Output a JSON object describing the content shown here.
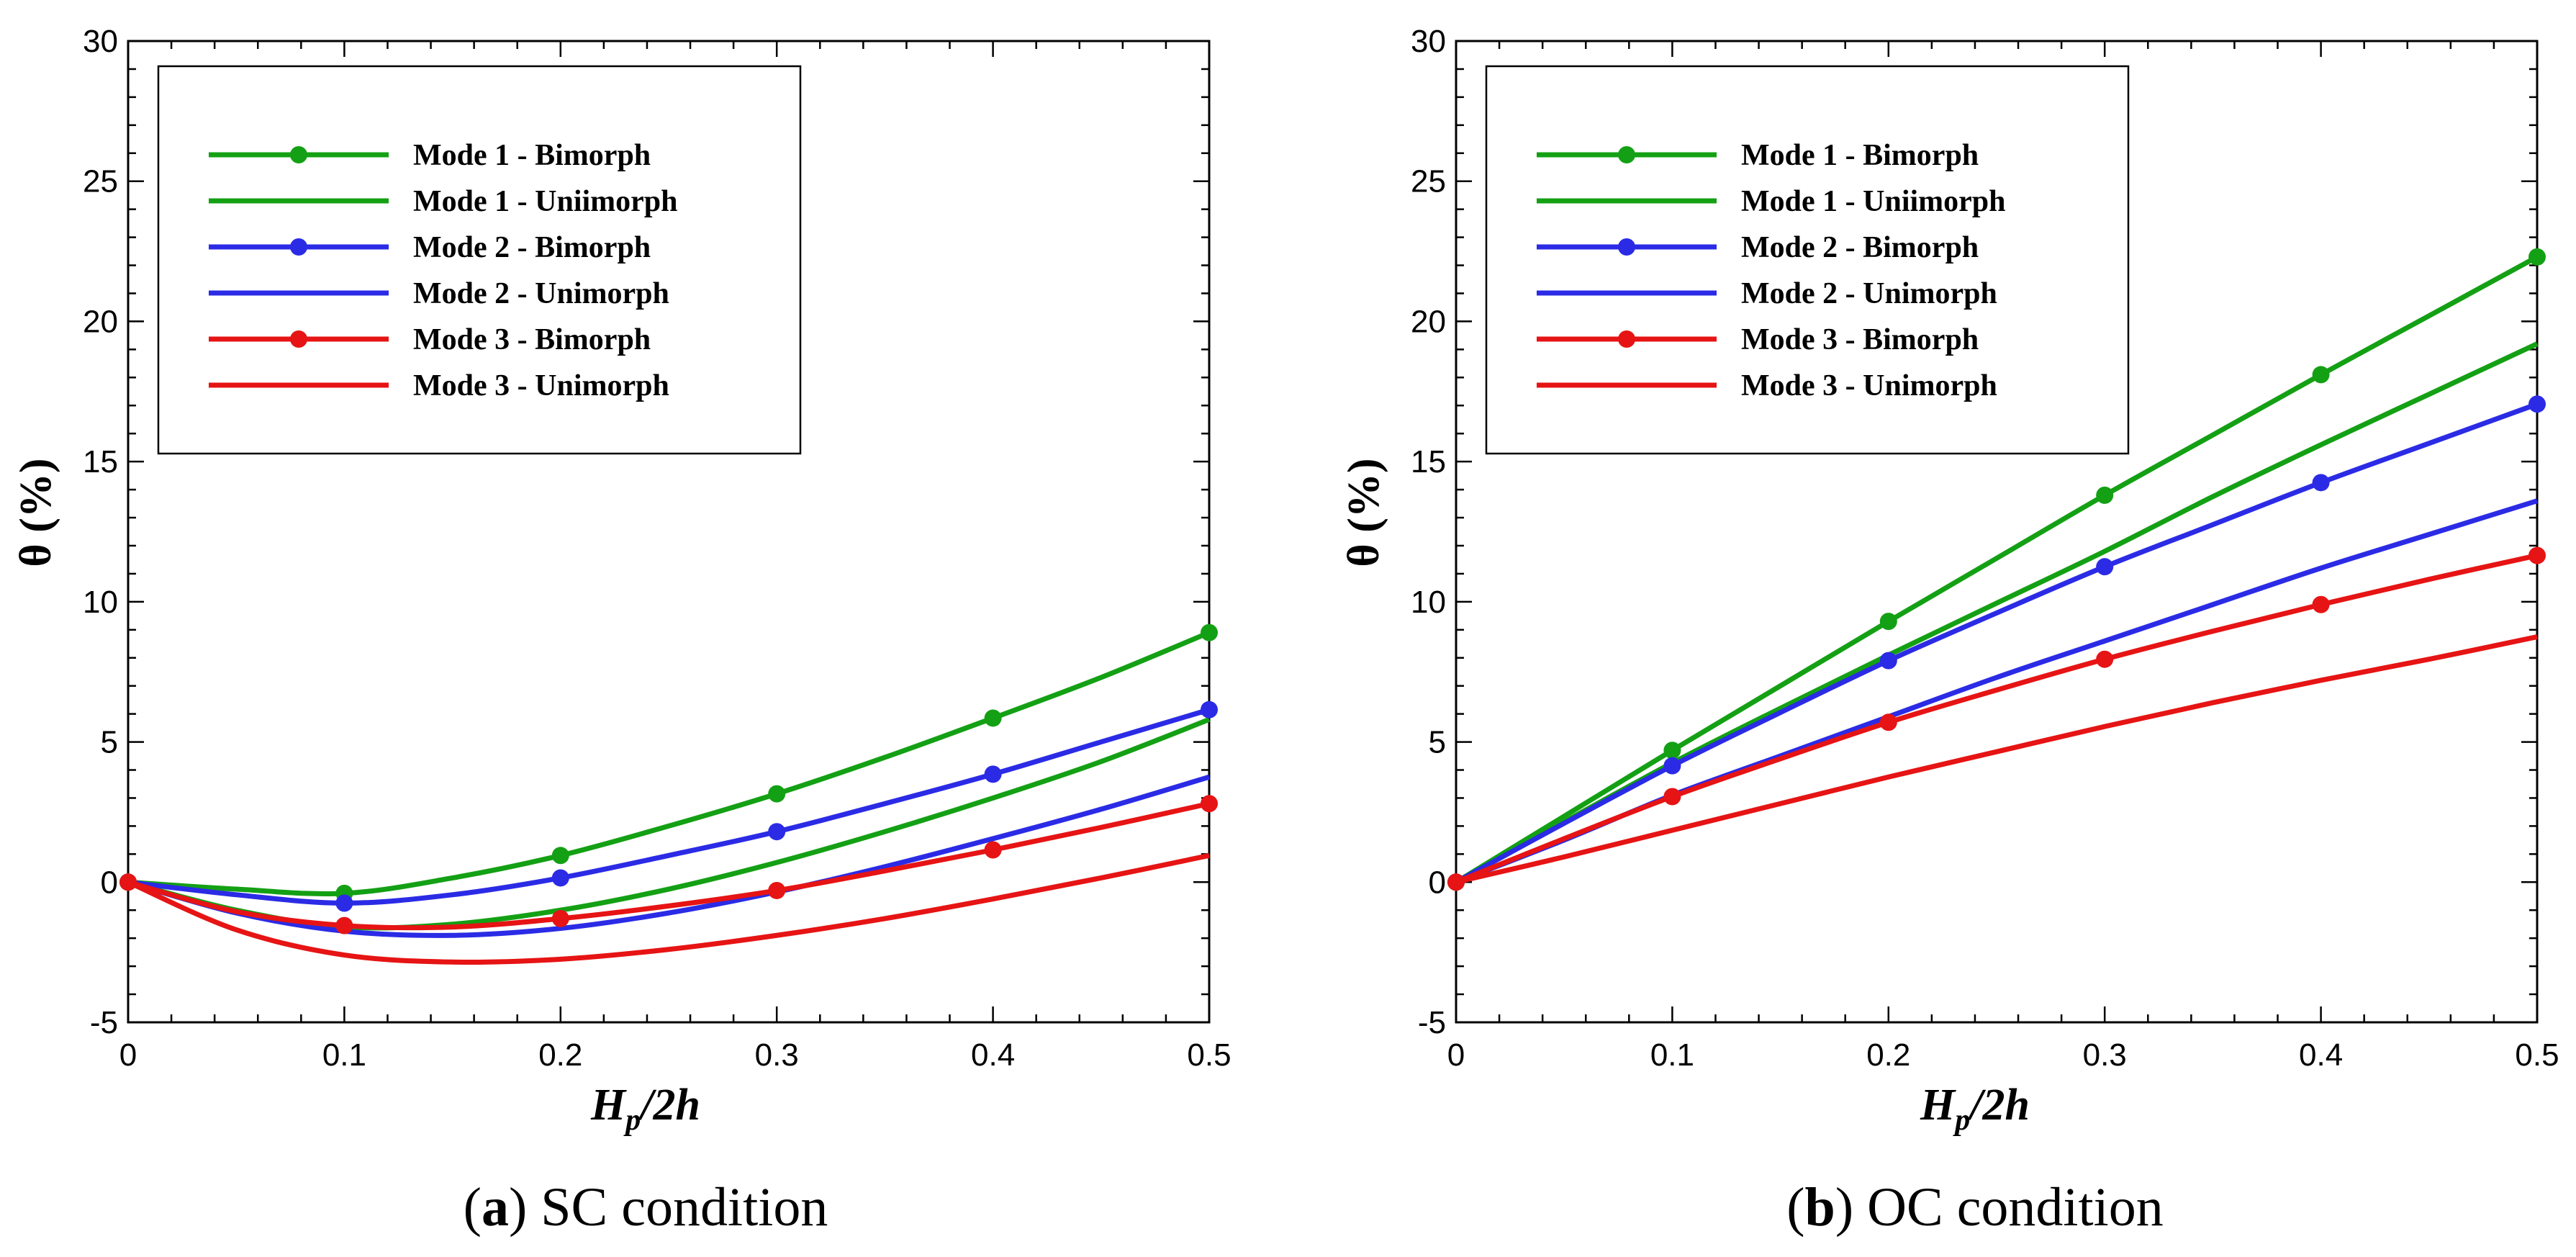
{
  "colors": {
    "mode1": "#14a014",
    "mode2": "#2b2be6",
    "mode3": "#e61414"
  },
  "chart_data": [
    {
      "id": "a",
      "type": "line",
      "caption_letter": "a",
      "caption_text": " SC condition",
      "xlabel_main": "H",
      "xlabel_sub": "p",
      "xlabel_rest": "/2h",
      "ylabel": "θ (%)",
      "xlim": [
        0,
        0.5
      ],
      "ylim": [
        -5,
        30
      ],
      "xticks": [
        "0",
        "0.1",
        "0.2",
        "0.3",
        "0.4",
        "0.5"
      ],
      "yticks": [
        "-5",
        "0",
        "5",
        "10",
        "15",
        "20",
        "25",
        "30"
      ],
      "xtick_values": [
        0,
        0.1,
        0.2,
        0.3,
        0.4,
        0.5
      ],
      "ytick_values": [
        -5,
        0,
        5,
        10,
        15,
        20,
        25,
        30
      ],
      "legend_position": "top-left",
      "series": [
        {
          "name": "Mode 1 - Bimorph",
          "color": "mode1",
          "markers": true,
          "x": [
            0,
            0.05,
            0.1,
            0.15,
            0.2,
            0.25,
            0.3,
            0.35,
            0.4,
            0.45,
            0.5
          ],
          "y": [
            0,
            -0.25,
            -0.4,
            0.15,
            0.95,
            2.0,
            3.15,
            4.45,
            5.85,
            7.3,
            8.9
          ]
        },
        {
          "name": "Mode 1 - Uniimorph",
          "color": "mode1",
          "markers": false,
          "x": [
            0,
            0.05,
            0.1,
            0.15,
            0.2,
            0.25,
            0.3,
            0.35,
            0.4,
            0.45,
            0.5
          ],
          "y": [
            0,
            -1.0,
            -1.6,
            -1.5,
            -1.0,
            -0.25,
            0.7,
            1.8,
            3.0,
            4.3,
            5.8
          ]
        },
        {
          "name": "Mode 2 - Bimorph",
          "color": "mode2",
          "markers": true,
          "x": [
            0,
            0.05,
            0.1,
            0.15,
            0.2,
            0.25,
            0.3,
            0.35,
            0.4,
            0.45,
            0.5
          ],
          "y": [
            0,
            -0.45,
            -0.75,
            -0.45,
            0.15,
            0.95,
            1.8,
            2.8,
            3.85,
            5.0,
            6.15
          ]
        },
        {
          "name": "Mode 2 - Unimorph",
          "color": "mode2",
          "markers": false,
          "x": [
            0,
            0.05,
            0.1,
            0.15,
            0.2,
            0.25,
            0.3,
            0.35,
            0.4,
            0.45,
            0.5
          ],
          "y": [
            0,
            -1.1,
            -1.75,
            -1.9,
            -1.65,
            -1.1,
            -0.35,
            0.55,
            1.55,
            2.6,
            3.75
          ]
        },
        {
          "name": "Mode 3 - Bimorph",
          "color": "mode3",
          "markers": true,
          "x": [
            0,
            0.05,
            0.1,
            0.15,
            0.2,
            0.25,
            0.3,
            0.35,
            0.4,
            0.45,
            0.5
          ],
          "y": [
            0,
            -1.05,
            -1.55,
            -1.6,
            -1.3,
            -0.85,
            -0.3,
            0.4,
            1.15,
            1.95,
            2.8
          ]
        },
        {
          "name": "Mode 3 - Unimorph",
          "color": "mode3",
          "markers": false,
          "x": [
            0,
            0.05,
            0.1,
            0.15,
            0.2,
            0.25,
            0.3,
            0.35,
            0.4,
            0.45,
            0.5
          ],
          "y": [
            0,
            -1.7,
            -2.6,
            -2.85,
            -2.75,
            -2.4,
            -1.9,
            -1.3,
            -0.6,
            0.15,
            0.95
          ]
        }
      ]
    },
    {
      "id": "b",
      "type": "line",
      "caption_letter": "b",
      "caption_text": " OC condition",
      "xlabel_main": "H",
      "xlabel_sub": "p",
      "xlabel_rest": "/2h",
      "ylabel": "θ (%)",
      "xlim": [
        0,
        0.5
      ],
      "ylim": [
        -5,
        30
      ],
      "xticks": [
        "0",
        "0.1",
        "0.2",
        "0.3",
        "0.4",
        "0.5"
      ],
      "yticks": [
        "-5",
        "0",
        "5",
        "10",
        "15",
        "20",
        "25",
        "30"
      ],
      "xtick_values": [
        0,
        0.1,
        0.2,
        0.3,
        0.4,
        0.5
      ],
      "ytick_values": [
        -5,
        0,
        5,
        10,
        15,
        20,
        25,
        30
      ],
      "legend_position": "top-left",
      "series": [
        {
          "name": "Mode 1 - Bimorph",
          "color": "mode1",
          "markers": true,
          "x": [
            0,
            0.05,
            0.1,
            0.15,
            0.2,
            0.25,
            0.3,
            0.35,
            0.4,
            0.45,
            0.5
          ],
          "y": [
            0,
            2.35,
            4.7,
            7.0,
            9.3,
            11.55,
            13.8,
            15.95,
            18.1,
            20.2,
            22.3
          ]
        },
        {
          "name": "Mode 1 - Uniimorph",
          "color": "mode1",
          "markers": false,
          "x": [
            0,
            0.05,
            0.1,
            0.15,
            0.2,
            0.25,
            0.3,
            0.35,
            0.4,
            0.45,
            0.5
          ],
          "y": [
            0,
            2.15,
            4.25,
            6.2,
            8.1,
            9.95,
            11.8,
            13.75,
            15.6,
            17.4,
            19.2
          ]
        },
        {
          "name": "Mode 2 - Bimorph",
          "color": "mode2",
          "markers": true,
          "x": [
            0,
            0.05,
            0.1,
            0.15,
            0.2,
            0.25,
            0.3,
            0.35,
            0.4,
            0.45,
            0.5
          ],
          "y": [
            0,
            2.1,
            4.15,
            6.05,
            7.9,
            9.6,
            11.25,
            12.75,
            14.25,
            15.65,
            17.05
          ]
        },
        {
          "name": "Mode 2 - Unimorph",
          "color": "mode2",
          "markers": false,
          "x": [
            0,
            0.05,
            0.1,
            0.15,
            0.2,
            0.25,
            0.3,
            0.35,
            0.4,
            0.45,
            0.5
          ],
          "y": [
            0,
            1.5,
            3.1,
            4.5,
            5.9,
            7.3,
            8.6,
            9.9,
            11.2,
            12.4,
            13.6
          ]
        },
        {
          "name": "Mode 3 - Bimorph",
          "color": "mode3",
          "markers": true,
          "x": [
            0,
            0.05,
            0.1,
            0.15,
            0.2,
            0.25,
            0.3,
            0.35,
            0.4,
            0.45,
            0.5
          ],
          "y": [
            0,
            1.55,
            3.05,
            4.4,
            5.7,
            6.85,
            7.95,
            8.95,
            9.9,
            10.8,
            11.65
          ]
        },
        {
          "name": "Mode 3 - Unimorph",
          "color": "mode3",
          "markers": false,
          "x": [
            0,
            0.05,
            0.1,
            0.15,
            0.2,
            0.25,
            0.3,
            0.35,
            0.4,
            0.45,
            0.5
          ],
          "y": [
            0,
            0.9,
            1.85,
            2.8,
            3.75,
            4.65,
            5.55,
            6.4,
            7.2,
            7.95,
            8.75
          ]
        }
      ]
    }
  ]
}
